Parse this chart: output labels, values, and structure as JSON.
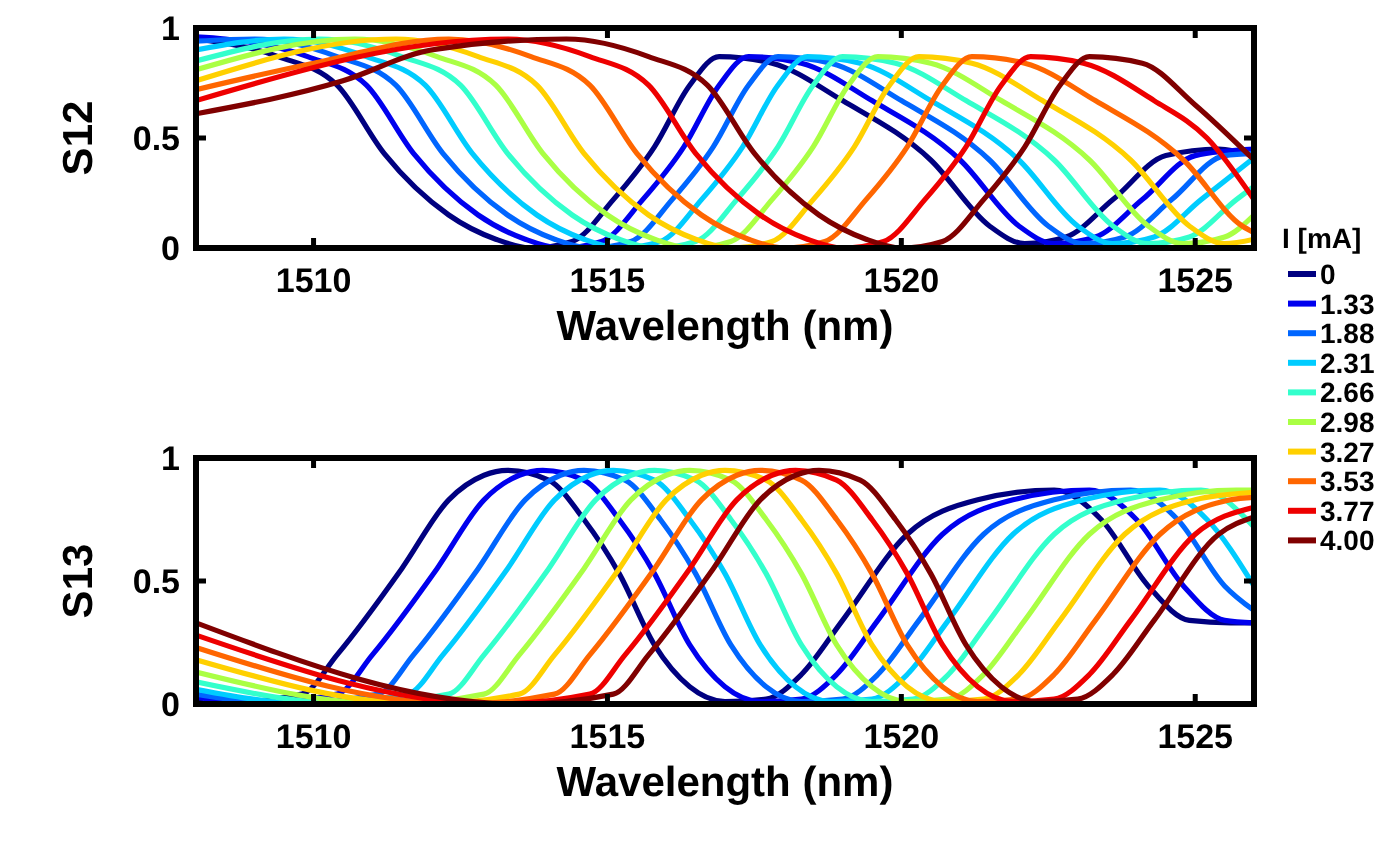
{
  "chart_data": [
    {
      "type": "line",
      "ylabel": "S12",
      "xlabel": "Wavelength (nm)",
      "legend_title": "I [mA]",
      "legend": "right",
      "grid": false,
      "line_style": "solid",
      "xlim": [
        1508,
        1526
      ],
      "xticks": [
        1510,
        1515,
        1520,
        1525
      ],
      "ylim": [
        0,
        1
      ],
      "yticks": [
        0,
        0.5,
        1
      ],
      "series": [
        {
          "name": "0",
          "color": "#000080",
          "x": [
            1508,
            1509.4,
            1510.4,
            1511.2,
            1512.3,
            1513.1,
            1513.7,
            1514.4,
            1515.1,
            1515.8,
            1516.4,
            1516.9,
            1517.8,
            1519.0,
            1520.5,
            1521.5,
            1522.1,
            1522.8,
            1523.6,
            1524.5,
            1525.4,
            1526
          ],
          "values": [
            0.95,
            0.87,
            0.74,
            0.43,
            0.15,
            0.04,
            0,
            0.03,
            0.22,
            0.46,
            0.74,
            0.87,
            0.84,
            0.67,
            0.4,
            0.1,
            0.02,
            0.05,
            0.22,
            0.42,
            0.45,
            0.42
          ]
        },
        {
          "name": "1.33",
          "color": "#0000ee",
          "x": [
            1508,
            1508.5,
            1509.9,
            1510.9,
            1511.7,
            1512.8,
            1513.6,
            1514.2,
            1514.9,
            1515.6,
            1516.3,
            1516.9,
            1517.4,
            1518.3,
            1519.5,
            1521.0,
            1522.0,
            1522.6,
            1523.3,
            1524.1,
            1525.0,
            1526
          ],
          "values": [
            0.96,
            0.95,
            0.87,
            0.74,
            0.43,
            0.15,
            0.04,
            0,
            0.03,
            0.22,
            0.46,
            0.74,
            0.87,
            0.84,
            0.67,
            0.4,
            0.1,
            0.02,
            0.05,
            0.22,
            0.42,
            0.45
          ]
        },
        {
          "name": "1.88",
          "color": "#0066ff",
          "x": [
            1508,
            1509.0,
            1510.4,
            1511.4,
            1512.2,
            1513.3,
            1514.1,
            1514.7,
            1515.4,
            1516.1,
            1516.8,
            1517.4,
            1517.9,
            1518.8,
            1520.0,
            1521.5,
            1522.5,
            1523.1,
            1523.8,
            1524.6,
            1525.5,
            1526
          ],
          "values": [
            0.94,
            0.95,
            0.87,
            0.74,
            0.43,
            0.15,
            0.04,
            0,
            0.03,
            0.22,
            0.46,
            0.74,
            0.87,
            0.84,
            0.67,
            0.4,
            0.1,
            0.02,
            0.05,
            0.22,
            0.42,
            0.43
          ]
        },
        {
          "name": "2.31",
          "color": "#00ccff",
          "x": [
            1508,
            1509.5,
            1510.9,
            1511.9,
            1512.7,
            1513.8,
            1514.6,
            1515.2,
            1515.9,
            1516.6,
            1517.3,
            1517.9,
            1518.4,
            1519.3,
            1520.5,
            1522.0,
            1523.0,
            1523.6,
            1524.3,
            1525.1,
            1526
          ],
          "values": [
            0.9,
            0.95,
            0.87,
            0.74,
            0.43,
            0.15,
            0.04,
            0,
            0.03,
            0.22,
            0.46,
            0.74,
            0.87,
            0.84,
            0.67,
            0.4,
            0.1,
            0.02,
            0.05,
            0.22,
            0.41
          ]
        },
        {
          "name": "2.66",
          "color": "#33ffcc",
          "x": [
            1508,
            1510.1,
            1511.5,
            1512.5,
            1513.3,
            1514.4,
            1515.2,
            1515.8,
            1516.5,
            1517.2,
            1517.9,
            1518.5,
            1519.0,
            1519.9,
            1521.1,
            1522.6,
            1523.6,
            1524.2,
            1524.9,
            1525.7,
            1526
          ],
          "values": [
            0.85,
            0.95,
            0.87,
            0.74,
            0.43,
            0.15,
            0.04,
            0,
            0.03,
            0.22,
            0.46,
            0.74,
            0.87,
            0.84,
            0.67,
            0.4,
            0.1,
            0.02,
            0.05,
            0.22,
            0.28
          ]
        },
        {
          "name": "2.98",
          "color": "#aaff44",
          "x": [
            1508,
            1510.7,
            1512.1,
            1513.1,
            1513.9,
            1515.0,
            1515.8,
            1516.4,
            1517.1,
            1517.8,
            1518.5,
            1519.1,
            1519.6,
            1520.5,
            1521.7,
            1523.2,
            1524.2,
            1524.8,
            1525.5,
            1526
          ],
          "values": [
            0.81,
            0.95,
            0.87,
            0.74,
            0.43,
            0.15,
            0.04,
            0,
            0.03,
            0.22,
            0.46,
            0.74,
            0.87,
            0.84,
            0.67,
            0.4,
            0.1,
            0.02,
            0.05,
            0.15
          ]
        },
        {
          "name": "3.27",
          "color": "#ffd000",
          "x": [
            1508,
            1511.4,
            1512.8,
            1513.8,
            1514.6,
            1515.7,
            1516.5,
            1517.1,
            1517.8,
            1518.5,
            1519.2,
            1519.8,
            1520.3,
            1521.2,
            1522.4,
            1523.9,
            1524.9,
            1525.5,
            1526
          ],
          "values": [
            0.76,
            0.95,
            0.87,
            0.74,
            0.43,
            0.15,
            0.04,
            0,
            0.03,
            0.22,
            0.46,
            0.74,
            0.87,
            0.84,
            0.67,
            0.4,
            0.1,
            0.02,
            0.04
          ]
        },
        {
          "name": "3.53",
          "color": "#ff6600",
          "x": [
            1508,
            1510,
            1512.3,
            1513.7,
            1514.7,
            1515.5,
            1516.6,
            1517.4,
            1518.0,
            1518.7,
            1519.4,
            1520.1,
            1520.7,
            1521.2,
            1522.1,
            1523.3,
            1524.8,
            1525.8,
            1526
          ],
          "values": [
            0.72,
            0.84,
            0.95,
            0.87,
            0.74,
            0.43,
            0.15,
            0.04,
            0,
            0.03,
            0.22,
            0.46,
            0.74,
            0.87,
            0.84,
            0.67,
            0.4,
            0.1,
            0.07
          ]
        },
        {
          "name": "3.77",
          "color": "#ee0000",
          "x": [
            1508,
            1513.3,
            1514.7,
            1515.7,
            1516.5,
            1517.6,
            1518.4,
            1519.0,
            1519.7,
            1520.4,
            1521.1,
            1521.7,
            1522.2,
            1523.1,
            1524.3,
            1525.2,
            1526
          ],
          "values": [
            0.67,
            0.95,
            0.87,
            0.74,
            0.43,
            0.15,
            0.04,
            0,
            0.03,
            0.22,
            0.46,
            0.74,
            0.87,
            0.84,
            0.67,
            0.5,
            0.22
          ]
        },
        {
          "name": "4.00",
          "color": "#800000",
          "x": [
            1508,
            1510.5,
            1512,
            1514.3,
            1515.7,
            1516.7,
            1517.5,
            1518.6,
            1519.4,
            1520.0,
            1520.7,
            1521.4,
            1522.1,
            1522.7,
            1523.2,
            1524.1,
            1525.0,
            1526
          ],
          "values": [
            0.61,
            0.76,
            0.9,
            0.95,
            0.87,
            0.74,
            0.43,
            0.15,
            0.04,
            0,
            0.03,
            0.22,
            0.46,
            0.74,
            0.87,
            0.84,
            0.65,
            0.4
          ]
        }
      ]
    },
    {
      "type": "line",
      "ylabel": "S13",
      "xlabel": "Wavelength (nm)",
      "legend": false,
      "grid": false,
      "line_style": "solid",
      "xlim": [
        1508,
        1526
      ],
      "xticks": [
        1510,
        1515,
        1520,
        1525
      ],
      "ylim": [
        0,
        1
      ],
      "yticks": [
        0,
        0.5,
        1
      ],
      "series": [
        {
          "color": "#000080",
          "x": [
            1508,
            1508.2,
            1509.8,
            1510.4,
            1511.5,
            1512.3,
            1512.9,
            1513.3,
            1514.0,
            1514.6,
            1515.2,
            1515.8,
            1516.4,
            1517.0,
            1517.7,
            1518.3,
            1519.0,
            1520.1,
            1521.3,
            1522.6,
            1523.4,
            1524.2,
            1524.9,
            1525.6,
            1526
          ],
          "values": [
            0.02,
            0,
            0.04,
            0.2,
            0.55,
            0.83,
            0.93,
            0.95,
            0.91,
            0.75,
            0.53,
            0.24,
            0.07,
            0.01,
            0.02,
            0.12,
            0.34,
            0.69,
            0.83,
            0.87,
            0.75,
            0.48,
            0.34,
            0.33,
            0.33
          ]
        },
        {
          "color": "#0000ee",
          "x": [
            1508,
            1508.8,
            1510.4,
            1511.0,
            1512.1,
            1512.9,
            1513.5,
            1513.9,
            1514.6,
            1515.2,
            1515.8,
            1516.4,
            1517.0,
            1517.6,
            1518.3,
            1518.9,
            1519.6,
            1520.7,
            1521.9,
            1523.2,
            1524.0,
            1524.8,
            1525.5,
            1526
          ],
          "values": [
            0.03,
            0,
            0.04,
            0.2,
            0.55,
            0.83,
            0.93,
            0.95,
            0.91,
            0.75,
            0.53,
            0.24,
            0.07,
            0.01,
            0.02,
            0.12,
            0.34,
            0.69,
            0.83,
            0.87,
            0.75,
            0.48,
            0.34,
            0.33
          ]
        },
        {
          "color": "#0066ff",
          "x": [
            1508,
            1509.5,
            1511.1,
            1511.7,
            1512.8,
            1513.6,
            1514.2,
            1514.6,
            1515.3,
            1515.9,
            1516.5,
            1517.1,
            1517.7,
            1518.3,
            1519.0,
            1519.6,
            1520.3,
            1521.4,
            1522.6,
            1523.9,
            1524.7,
            1525.5,
            1526
          ],
          "values": [
            0.04,
            0,
            0.04,
            0.2,
            0.55,
            0.83,
            0.93,
            0.95,
            0.91,
            0.75,
            0.53,
            0.24,
            0.07,
            0.01,
            0.02,
            0.12,
            0.34,
            0.69,
            0.83,
            0.87,
            0.75,
            0.48,
            0.38
          ]
        },
        {
          "color": "#00ccff",
          "x": [
            1508,
            1510.0,
            1511.6,
            1512.2,
            1513.3,
            1514.1,
            1514.7,
            1515.1,
            1515.8,
            1516.4,
            1517.0,
            1517.6,
            1518.2,
            1518.8,
            1519.5,
            1520.1,
            1520.8,
            1521.9,
            1523.1,
            1524.4,
            1525.2,
            1526
          ],
          "values": [
            0.06,
            0,
            0.04,
            0.2,
            0.55,
            0.83,
            0.93,
            0.95,
            0.91,
            0.75,
            0.53,
            0.24,
            0.07,
            0.01,
            0.02,
            0.12,
            0.34,
            0.69,
            0.83,
            0.87,
            0.75,
            0.48
          ]
        },
        {
          "color": "#33ffcc",
          "x": [
            1508,
            1510.7,
            1512.3,
            1512.9,
            1514.0,
            1514.8,
            1515.4,
            1515.8,
            1516.5,
            1517.1,
            1517.7,
            1518.3,
            1518.9,
            1519.5,
            1520.2,
            1520.8,
            1521.5,
            1522.6,
            1523.8,
            1525.1,
            1526
          ],
          "values": [
            0.09,
            0,
            0.04,
            0.2,
            0.55,
            0.83,
            0.93,
            0.95,
            0.91,
            0.75,
            0.53,
            0.24,
            0.07,
            0.01,
            0.02,
            0.12,
            0.34,
            0.69,
            0.83,
            0.87,
            0.72
          ]
        },
        {
          "color": "#aaff44",
          "x": [
            1508,
            1511.3,
            1512.9,
            1513.5,
            1514.6,
            1515.4,
            1516.0,
            1516.4,
            1517.1,
            1517.7,
            1518.3,
            1518.9,
            1519.5,
            1520.1,
            1520.8,
            1521.4,
            1522.1,
            1523.2,
            1524.4,
            1525.7,
            1526
          ],
          "values": [
            0.13,
            0,
            0.04,
            0.2,
            0.55,
            0.83,
            0.93,
            0.95,
            0.91,
            0.75,
            0.53,
            0.24,
            0.07,
            0.01,
            0.02,
            0.12,
            0.34,
            0.69,
            0.83,
            0.87,
            0.87
          ]
        },
        {
          "color": "#ffd000",
          "x": [
            1508,
            1511.9,
            1513.5,
            1514.1,
            1515.2,
            1516.0,
            1516.6,
            1517.0,
            1517.7,
            1518.3,
            1518.9,
            1519.5,
            1520.1,
            1520.7,
            1521.4,
            1522.0,
            1522.7,
            1523.8,
            1525.0,
            1526
          ],
          "values": [
            0.18,
            0,
            0.04,
            0.2,
            0.55,
            0.83,
            0.93,
            0.95,
            0.91,
            0.75,
            0.53,
            0.24,
            0.07,
            0.01,
            0.02,
            0.12,
            0.34,
            0.69,
            0.83,
            0.86
          ]
        },
        {
          "color": "#ff6600",
          "x": [
            1508,
            1512.5,
            1514.1,
            1514.7,
            1515.8,
            1516.6,
            1517.2,
            1517.6,
            1518.3,
            1518.9,
            1519.5,
            1520.1,
            1520.7,
            1521.3,
            1522.0,
            1522.6,
            1523.3,
            1524.4,
            1525.6,
            1526
          ],
          "values": [
            0.23,
            0,
            0.04,
            0.2,
            0.55,
            0.83,
            0.93,
            0.95,
            0.91,
            0.75,
            0.53,
            0.24,
            0.07,
            0.01,
            0.02,
            0.12,
            0.34,
            0.69,
            0.83,
            0.84
          ]
        },
        {
          "color": "#ee0000",
          "x": [
            1508,
            1513.1,
            1514.7,
            1515.3,
            1516.4,
            1517.2,
            1517.8,
            1518.2,
            1518.9,
            1519.5,
            1520.1,
            1520.7,
            1521.3,
            1521.9,
            1522.6,
            1523.2,
            1523.9,
            1525.0,
            1526
          ],
          "values": [
            0.28,
            0,
            0.04,
            0.2,
            0.55,
            0.83,
            0.93,
            0.95,
            0.91,
            0.75,
            0.53,
            0.24,
            0.07,
            0.01,
            0.02,
            0.12,
            0.34,
            0.69,
            0.8
          ]
        },
        {
          "color": "#800000",
          "x": [
            1508,
            1513.5,
            1515.1,
            1515.7,
            1516.8,
            1517.6,
            1518.2,
            1518.6,
            1519.3,
            1519.9,
            1520.5,
            1521.1,
            1521.7,
            1522.3,
            1523.0,
            1523.6,
            1524.3,
            1525.4,
            1526
          ],
          "values": [
            0.33,
            0,
            0.04,
            0.2,
            0.55,
            0.83,
            0.93,
            0.95,
            0.91,
            0.75,
            0.53,
            0.24,
            0.07,
            0.01,
            0.02,
            0.12,
            0.34,
            0.69,
            0.76
          ]
        }
      ]
    }
  ]
}
